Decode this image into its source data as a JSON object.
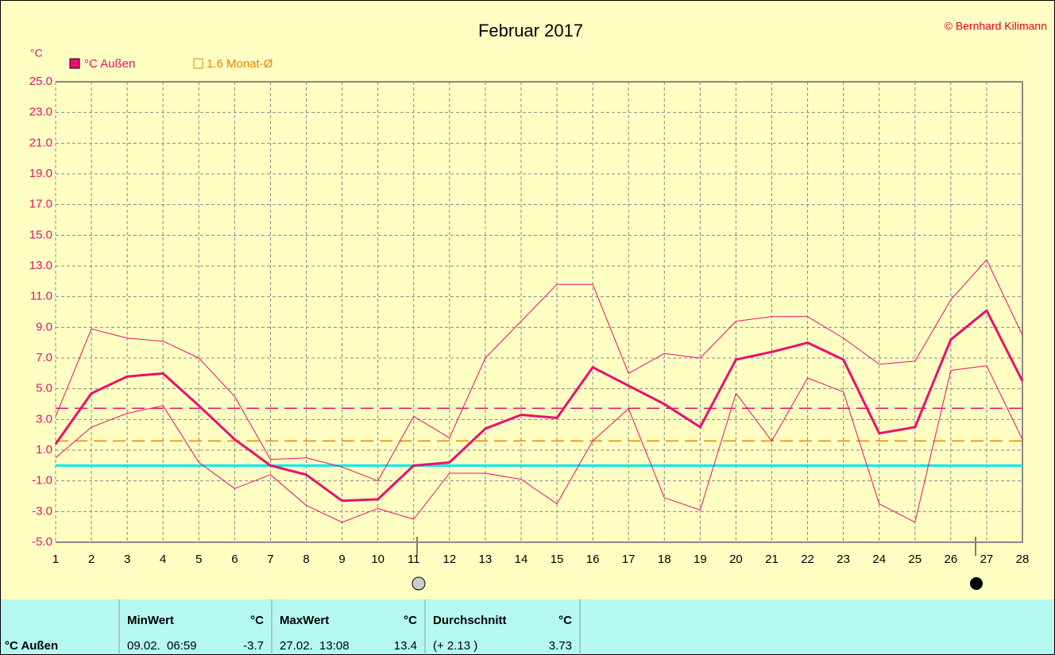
{
  "chart_data": {
    "type": "line",
    "title": "Februar 2017",
    "copyright": "© Bernhard Kilimann",
    "y_unit": "°C",
    "categories": [
      "1",
      "2",
      "3",
      "4",
      "5",
      "6",
      "7",
      "8",
      "9",
      "10",
      "11",
      "12",
      "13",
      "14",
      "15",
      "16",
      "17",
      "18",
      "19",
      "20",
      "21",
      "22",
      "23",
      "24",
      "25",
      "26",
      "27",
      "28"
    ],
    "series": [
      {
        "name": "°C Außen",
        "color": "#e8106e",
        "width": 3,
        "values": [
          1.4,
          4.7,
          5.8,
          6.0,
          3.9,
          1.7,
          0.0,
          -0.6,
          -2.3,
          -2.2,
          0.0,
          0.2,
          2.4,
          3.3,
          3.1,
          6.4,
          5.2,
          4.0,
          2.5,
          6.9,
          7.4,
          8.0,
          6.9,
          2.1,
          2.5,
          8.2,
          10.1,
          5.5
        ]
      },
      {
        "color": "#e8106e",
        "width": 1,
        "values": [
          3.2,
          8.9,
          8.3,
          8.1,
          7.0,
          4.5,
          0.4,
          0.5,
          -0.1,
          -1.0,
          3.2,
          1.8,
          7.0,
          9.4,
          11.8,
          11.8,
          6.0,
          7.3,
          7.0,
          9.4,
          9.7,
          9.7,
          8.3,
          6.6,
          6.8,
          10.8,
          13.4,
          8.5
        ]
      },
      {
        "color": "#e8106e",
        "width": 1,
        "values": [
          0.5,
          2.5,
          3.4,
          3.9,
          0.2,
          -1.5,
          -0.6,
          -2.6,
          -3.7,
          -2.8,
          -3.5,
          -0.5,
          -0.5,
          -0.9,
          -2.5,
          1.6,
          3.7,
          -2.1,
          -2.9,
          4.7,
          1.6,
          5.7,
          4.8,
          -2.5,
          -3.7,
          6.2,
          6.5,
          1.7
        ]
      }
    ],
    "month_avg": {
      "value": 1.6,
      "label": "1.6 Monat-Ø",
      "color": "#f08000"
    },
    "mean_line": {
      "value": 3.73,
      "color": "#e8106e"
    },
    "zero_line": {
      "value": 0,
      "color": "#00e8e8"
    },
    "ylim": [
      -5,
      25
    ],
    "yticks": [
      {
        "value": -5,
        "label": "-5.0"
      },
      {
        "value": -3,
        "label": "-3.0"
      },
      {
        "value": -1,
        "label": "-1.0"
      },
      {
        "value": 1,
        "label": "1.0"
      },
      {
        "value": 3,
        "label": "3.0"
      },
      {
        "value": 5,
        "label": "5.0"
      },
      {
        "value": 7,
        "label": "7.0"
      },
      {
        "value": 9,
        "label": "9.0"
      },
      {
        "value": 11,
        "label": "11.0"
      },
      {
        "value": 13,
        "label": "13.0"
      },
      {
        "value": 15,
        "label": "15.0"
      },
      {
        "value": 17,
        "label": "17.0"
      },
      {
        "value": 19,
        "label": "19.0"
      },
      {
        "value": 21,
        "label": "21.0"
      },
      {
        "value": 23,
        "label": "23.0"
      },
      {
        "value": 25,
        "label": "25.0"
      }
    ],
    "grid": true
  },
  "table": {
    "header": [
      [
        "MinWert",
        "°C"
      ],
      [
        "MaxWert",
        "°C"
      ],
      [
        "Durchschnitt",
        "°C"
      ]
    ],
    "row_label": "°C Außen",
    "row": [
      [
        "09.02.  06:59",
        -3.7
      ],
      [
        "27.02.  13:08",
        13.4
      ],
      [
        "(+ 2.13 )",
        3.73
      ]
    ]
  }
}
